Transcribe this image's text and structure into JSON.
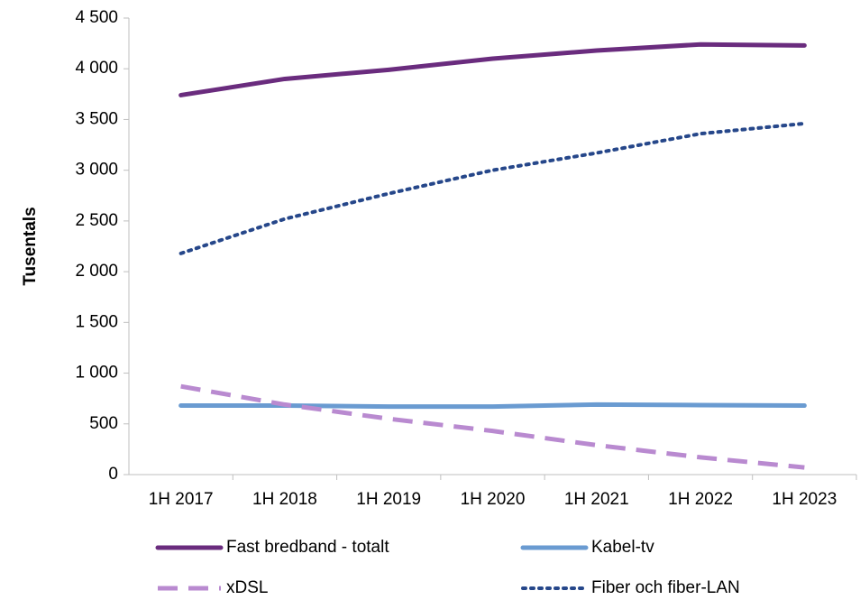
{
  "chart_data": {
    "type": "line",
    "y_label": "Tusentals",
    "categories": [
      "1H 2017",
      "1H 2018",
      "1H 2019",
      "1H 2020",
      "1H 2021",
      "1H 2022",
      "1H 2023"
    ],
    "series": [
      {
        "name": "Fast bredband - totalt",
        "color": "#6a2c7e",
        "style": "solid",
        "values": [
          3740,
          3900,
          3990,
          4100,
          4180,
          4240,
          4230
        ]
      },
      {
        "name": "Kabel-tv",
        "color": "#6a9bd1",
        "style": "solid",
        "values": [
          680,
          680,
          670,
          670,
          690,
          685,
          680
        ]
      },
      {
        "name": "xDSL",
        "color": "#b98ad0",
        "style": "dashed",
        "values": [
          870,
          690,
          550,
          430,
          290,
          170,
          70
        ]
      },
      {
        "name": "Fiber och fiber-LAN",
        "color": "#26478a",
        "style": "dotted",
        "values": [
          2180,
          2520,
          2770,
          3000,
          3170,
          3360,
          3460
        ]
      }
    ],
    "ylim": [
      0,
      4500
    ],
    "yticks": [
      0,
      500,
      {
        "value": 1000,
        "label": "1 000"
      },
      {
        "value": 1500,
        "label": "1 500"
      },
      {
        "value": 2000,
        "label": "2 000"
      },
      {
        "value": 2500,
        "label": "2 500"
      },
      {
        "value": 3000,
        "label": "3 000"
      },
      {
        "value": 3500,
        "label": "3 500"
      },
      {
        "value": 4000,
        "label": "4 000"
      },
      {
        "value": 4500,
        "label": "4 500"
      }
    ],
    "grid": false
  }
}
